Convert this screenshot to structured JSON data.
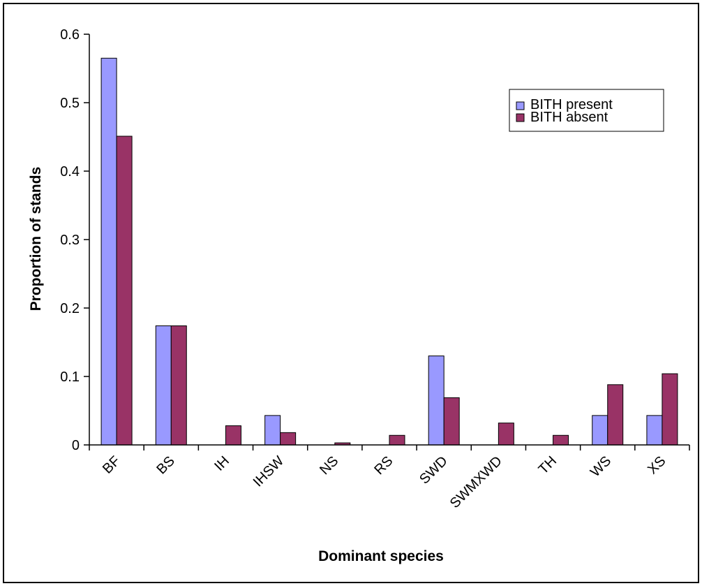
{
  "chart_data": {
    "type": "bar",
    "title": "",
    "xlabel": "Dominant species",
    "ylabel": "Proportion of stands",
    "ylim": [
      0,
      0.6
    ],
    "yticks": [
      "0",
      "0.1",
      "0.2",
      "0.3",
      "0.4",
      "0.5",
      "0.6"
    ],
    "grid": false,
    "legend_position": "top-right",
    "categories": [
      "BF",
      "BS",
      "IH",
      "IHSW",
      "NS",
      "RS",
      "SWD",
      "SWMXWD",
      "TH",
      "WS",
      "XS"
    ],
    "series": [
      {
        "name": "BITH present",
        "color": "#9999ff",
        "values": [
          0.565,
          0.174,
          0,
          0.043,
          0,
          0,
          0.13,
          0,
          0,
          0.043,
          0.043
        ]
      },
      {
        "name": "BITH absent",
        "color": "#993366",
        "values": [
          0.451,
          0.174,
          0.028,
          0.018,
          0.003,
          0.014,
          0.069,
          0.032,
          0.014,
          0.088,
          0.104
        ]
      }
    ]
  }
}
